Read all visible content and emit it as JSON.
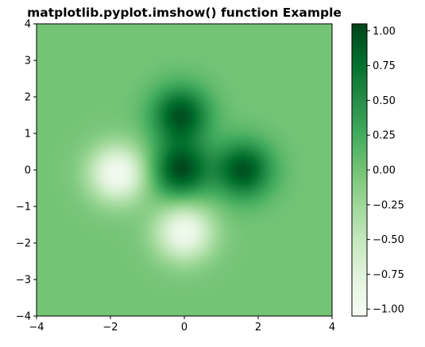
{
  "chart_data": {
    "type": "heatmap",
    "title": "matplotlib.pyplot.imshow() function Example",
    "xlabel": "",
    "ylabel": "",
    "xlim": [
      -4,
      4
    ],
    "ylim": [
      -4,
      4
    ],
    "x_ticks": [
      -4,
      -2,
      0,
      2,
      4
    ],
    "x_tick_labels": [
      "−4",
      "−2",
      "0",
      "2",
      "4"
    ],
    "y_ticks": [
      -4,
      -3,
      -2,
      -1,
      0,
      1,
      2,
      3,
      4
    ],
    "y_tick_labels": [
      "−4",
      "−3",
      "−2",
      "−1",
      "0",
      "1",
      "2",
      "3",
      "4"
    ],
    "colormap": "Greens",
    "color_low": "#f7fcf5",
    "color_high": "#00441b",
    "value_range": [
      -1.05,
      1.05
    ],
    "grid": false,
    "features": [
      {
        "kind": "peak",
        "x": -0.1,
        "y": 1.5,
        "value": 0.95
      },
      {
        "kind": "peak",
        "x": -0.1,
        "y": 0.0,
        "value": 1.0
      },
      {
        "kind": "peak",
        "x": 1.6,
        "y": 0.0,
        "value": 0.95
      },
      {
        "kind": "trough",
        "x": -1.8,
        "y": -0.1,
        "value": -1.0
      },
      {
        "kind": "trough",
        "x": 0.0,
        "y": -1.7,
        "value": -0.95
      }
    ],
    "colorbar": {
      "ticks": [
        1.0,
        0.75,
        0.5,
        0.25,
        0.0,
        -0.25,
        -0.5,
        -0.75,
        -1.0
      ],
      "tick_labels": [
        "1.00",
        "0.75",
        "0.50",
        "0.25",
        "0.00",
        "−0.25",
        "−0.50",
        "−0.75",
        "−1.00"
      ]
    }
  }
}
